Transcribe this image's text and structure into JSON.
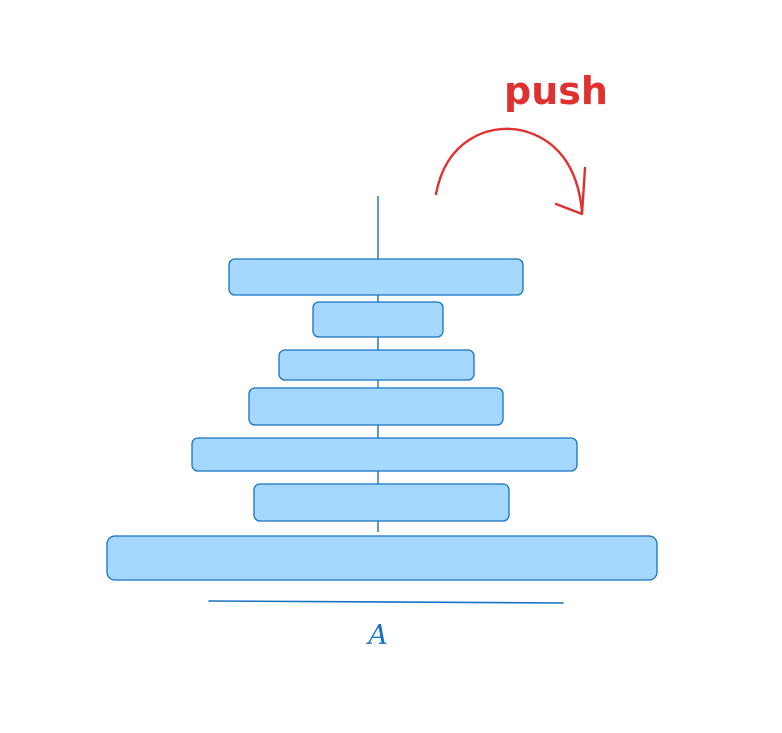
{
  "diagram": {
    "type": "stack-push-illustration",
    "peg_label": "A",
    "action_label": "push",
    "disk_count": 7,
    "colors": {
      "disk_fill": "#a5d8ff",
      "disk_stroke": "#1971c2",
      "rod": "#1e6fb8",
      "label": "#1971c2",
      "action": "#e03131"
    },
    "icons": {
      "arrow": "curved-arrow-icon"
    }
  }
}
